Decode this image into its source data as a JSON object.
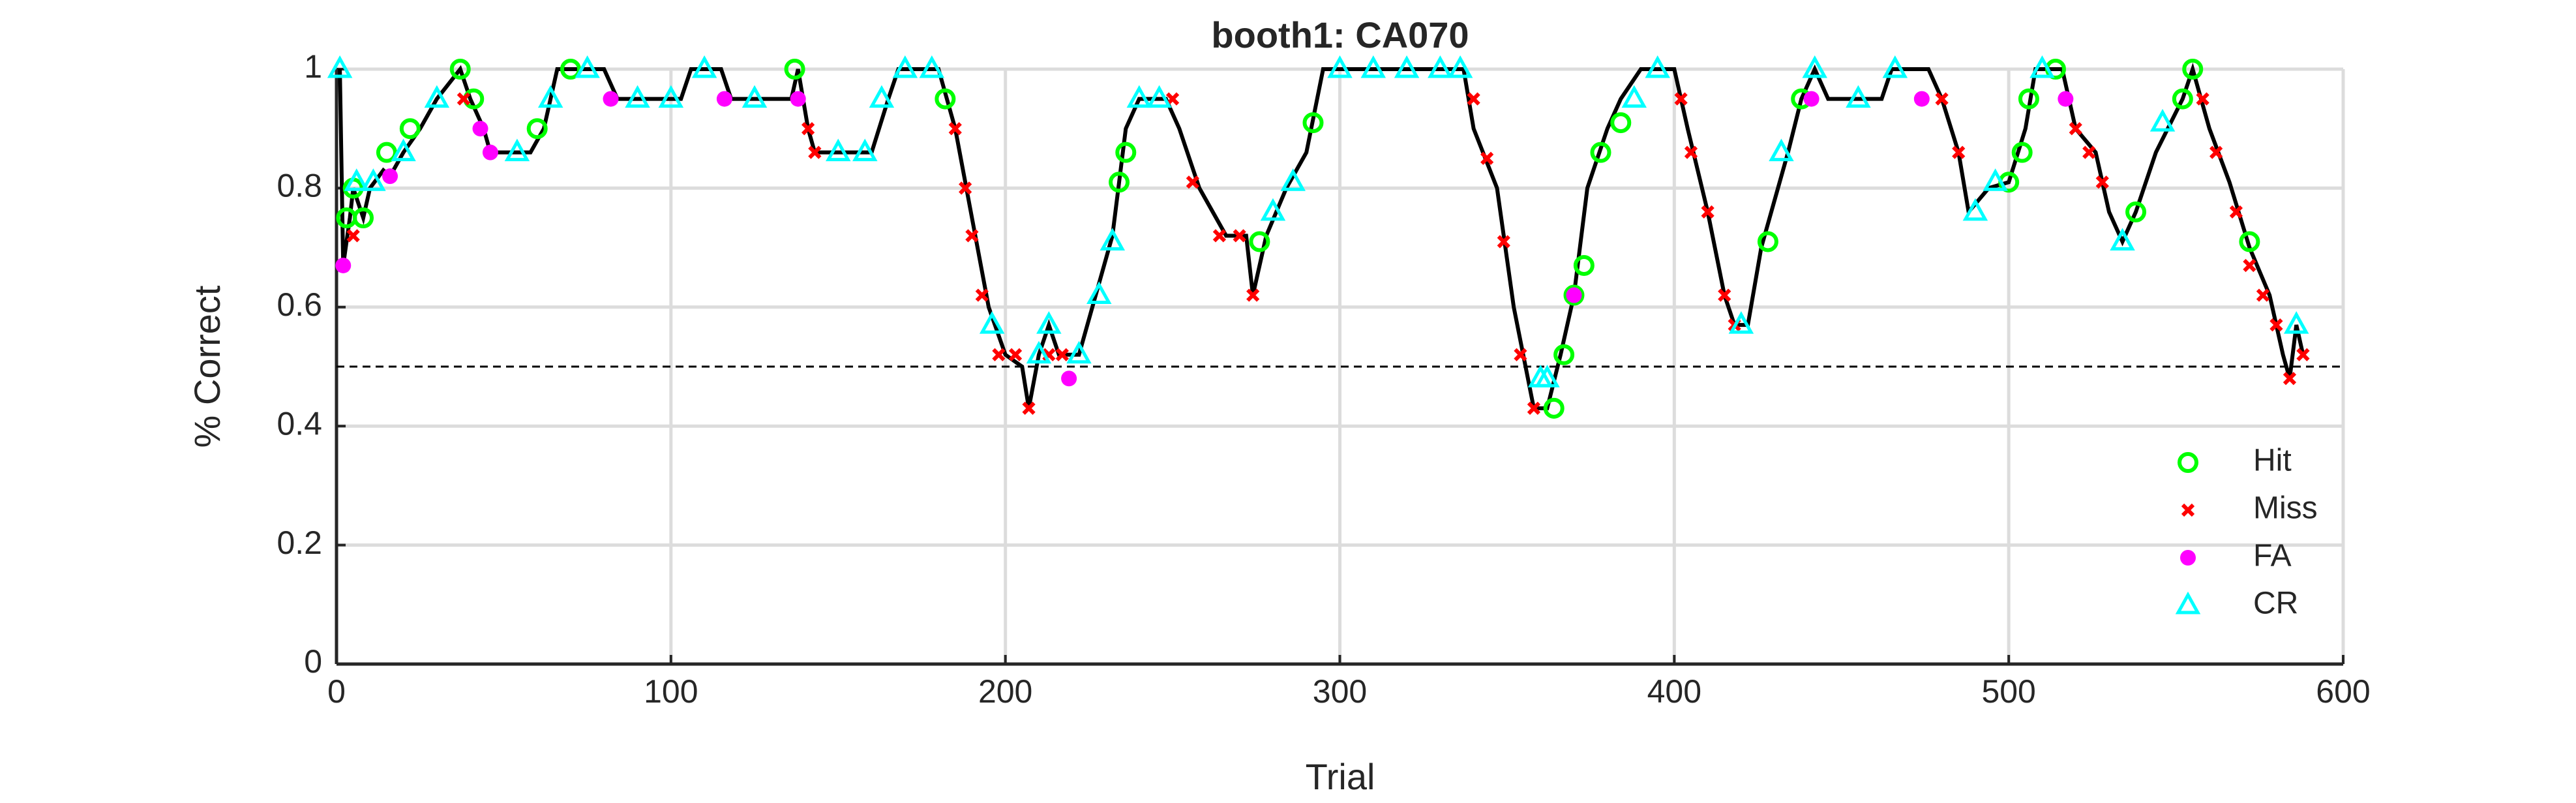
{
  "chart_data": {
    "type": "line",
    "title": "booth1: CA070",
    "x_label": "Trial",
    "y_label": "% Correct",
    "xlim": [
      0,
      600
    ],
    "ylim": [
      0,
      1
    ],
    "xticks": [
      0,
      100,
      200,
      300,
      400,
      500,
      600
    ],
    "yticks": [
      0,
      0.2,
      0.4,
      0.6,
      0.8,
      1
    ],
    "grid": true,
    "legend": "lower right",
    "threshold": 0.5,
    "line": {
      "color": "#000000",
      "x": [
        1,
        2,
        4,
        5,
        8,
        10,
        14,
        16,
        20,
        25,
        30,
        37,
        40,
        44,
        46,
        58,
        62,
        66,
        80,
        84,
        103,
        106,
        115,
        118,
        136,
        138,
        141,
        143,
        160,
        165,
        168,
        180,
        185,
        190,
        195,
        200,
        205,
        207,
        210,
        213,
        216,
        222,
        226,
        232,
        236,
        240,
        248,
        252,
        258,
        262,
        266,
        272,
        274,
        278,
        284,
        290,
        295,
        337,
        340,
        347,
        352,
        358,
        362,
        366,
        370,
        374,
        380,
        384,
        390,
        400,
        404,
        410,
        415,
        418,
        422,
        426,
        434,
        438,
        442,
        446,
        462,
        465,
        476,
        480,
        485,
        488,
        494,
        500,
        505,
        508,
        516,
        520,
        526,
        530,
        534,
        538,
        544,
        552,
        555,
        560,
        566,
        572,
        578,
        582,
        584,
        586,
        588
      ],
      "values": [
        1,
        0.67,
        0.75,
        0.8,
        0.75,
        0.8,
        0.83,
        0.82,
        0.86,
        0.9,
        0.95,
        1,
        0.95,
        0.9,
        0.86,
        0.86,
        0.9,
        1,
        1,
        0.95,
        0.95,
        1,
        1,
        0.95,
        0.95,
        1,
        0.9,
        0.86,
        0.86,
        0.95,
        1,
        1,
        0.9,
        0.75,
        0.6,
        0.52,
        0.5,
        0.43,
        0.52,
        0.57,
        0.52,
        0.52,
        0.6,
        0.72,
        0.9,
        0.95,
        0.95,
        0.9,
        0.8,
        0.76,
        0.72,
        0.72,
        0.62,
        0.72,
        0.8,
        0.86,
        1,
        1,
        0.9,
        0.8,
        0.6,
        0.43,
        0.43,
        0.52,
        0.62,
        0.8,
        0.9,
        0.95,
        1,
        1,
        0.9,
        0.76,
        0.62,
        0.57,
        0.57,
        0.7,
        0.86,
        0.95,
        1,
        0.95,
        0.95,
        1,
        1,
        0.95,
        0.86,
        0.76,
        0.8,
        0.81,
        0.9,
        1,
        1,
        0.9,
        0.86,
        0.76,
        0.71,
        0.76,
        0.86,
        0.95,
        1,
        0.9,
        0.81,
        0.7,
        0.62,
        0.52,
        0.48,
        0.57,
        0.52
      ]
    },
    "series": [
      {
        "name": "Hit",
        "color": "#00ff00",
        "marker": "circle",
        "x": [
          3,
          5,
          8,
          15,
          22,
          37,
          41,
          60,
          70,
          137,
          182,
          234,
          236,
          276,
          292,
          364,
          367,
          370,
          373,
          378,
          384,
          428,
          438,
          500,
          504,
          506,
          514,
          538,
          552,
          555,
          572
        ],
        "values": [
          0.75,
          0.8,
          0.75,
          0.86,
          0.9,
          1,
          0.95,
          0.9,
          1,
          1,
          0.95,
          0.81,
          0.86,
          0.71,
          0.91,
          0.43,
          0.52,
          0.62,
          0.67,
          0.86,
          0.91,
          0.71,
          0.95,
          0.81,
          0.86,
          0.95,
          1,
          0.76,
          0.95,
          1,
          0.71
        ]
      },
      {
        "name": "Miss",
        "color": "#ff0000",
        "marker": "x",
        "x": [
          5,
          38,
          141,
          143,
          185,
          188,
          190,
          193,
          198,
          203,
          207,
          213,
          217,
          250,
          256,
          264,
          270,
          274,
          340,
          344,
          349,
          354,
          358,
          402,
          405,
          410,
          415,
          418,
          480,
          485,
          520,
          524,
          528,
          558,
          562,
          568,
          572,
          576,
          580,
          584,
          588
        ],
        "values": [
          0.72,
          0.95,
          0.9,
          0.86,
          0.9,
          0.8,
          0.72,
          0.62,
          0.52,
          0.52,
          0.43,
          0.52,
          0.52,
          0.95,
          0.81,
          0.72,
          0.72,
          0.62,
          0.95,
          0.85,
          0.71,
          0.52,
          0.43,
          0.95,
          0.86,
          0.76,
          0.62,
          0.57,
          0.95,
          0.86,
          0.9,
          0.86,
          0.81,
          0.95,
          0.86,
          0.76,
          0.67,
          0.62,
          0.57,
          0.48,
          0.52
        ]
      },
      {
        "name": "FA",
        "color": "#ff00ff",
        "marker": "dot",
        "x": [
          2,
          16,
          43,
          46,
          82,
          116,
          138,
          219,
          370,
          441,
          474,
          517
        ],
        "values": [
          0.67,
          0.82,
          0.9,
          0.86,
          0.95,
          0.95,
          0.95,
          0.48,
          0.62,
          0.95,
          0.95,
          0.95
        ]
      },
      {
        "name": "CR",
        "color": "#00ffff",
        "marker": "triangle",
        "x": [
          1,
          6,
          11,
          20,
          30,
          54,
          64,
          75,
          90,
          100,
          110,
          125,
          150,
          158,
          163,
          170,
          178,
          196,
          210,
          213,
          222,
          228,
          232,
          240,
          246,
          280,
          286,
          300,
          310,
          320,
          330,
          336,
          360,
          362,
          388,
          395,
          420,
          432,
          442,
          455,
          466,
          490,
          496,
          510,
          534,
          546,
          586
        ],
        "values": [
          1,
          0.81,
          0.81,
          0.86,
          0.95,
          0.86,
          0.95,
          1,
          0.95,
          0.95,
          1,
          0.95,
          0.86,
          0.86,
          0.95,
          1,
          1,
          0.57,
          0.52,
          0.57,
          0.52,
          0.62,
          0.71,
          0.95,
          0.95,
          0.76,
          0.81,
          1,
          1,
          1,
          1,
          1,
          0.48,
          0.48,
          0.95,
          1,
          0.57,
          0.86,
          1,
          0.95,
          1,
          0.76,
          0.81,
          1,
          0.71,
          0.91,
          0.57
        ]
      }
    ]
  }
}
